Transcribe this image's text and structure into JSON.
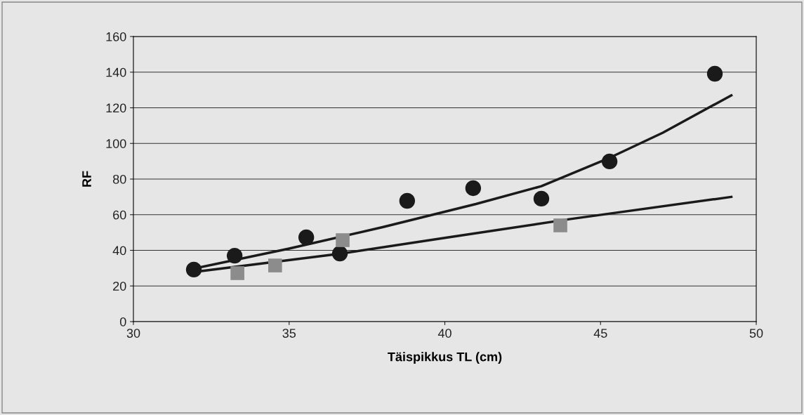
{
  "chart_data": {
    "type": "scatter",
    "xlabel": "Täispikkus TL (cm)",
    "ylabel": "RF",
    "xlim": [
      30,
      50
    ],
    "xticks": [
      30,
      35,
      40,
      45,
      50
    ],
    "ylim": [
      0,
      160
    ],
    "yticks": [
      0,
      20,
      40,
      60,
      80,
      100,
      120,
      140,
      160
    ],
    "grid": "y",
    "series": [
      {
        "marker": "circle",
        "color": "#1a1a1a",
        "x": [
          31.94,
          33.25,
          35.55,
          36.63,
          38.79,
          40.91,
          43.1,
          45.29,
          48.67
        ],
        "values": [
          29.2,
          37,
          47.3,
          38.2,
          67.8,
          74.9,
          69,
          89.9,
          139.1
        ]
      },
      {
        "marker": "square",
        "color": "#8c8c8c",
        "x": [
          33.34,
          34.55,
          36.72,
          43.71
        ],
        "values": [
          27.2,
          31.5,
          45.7,
          54
        ]
      },
      {
        "type": "line",
        "marker": "none",
        "color": "#1a1a1a",
        "x": [
          32,
          35,
          38,
          41,
          43.1,
          45.3,
          47,
          49.2
        ],
        "values": [
          30,
          41,
          53,
          66,
          76,
          92,
          106,
          127
        ]
      },
      {
        "type": "line",
        "marker": "none",
        "color": "#1a1a1a",
        "x": [
          32,
          36.6,
          40,
          44,
          49.2
        ],
        "values": [
          28,
          38,
          47,
          57.5,
          70
        ]
      }
    ]
  }
}
